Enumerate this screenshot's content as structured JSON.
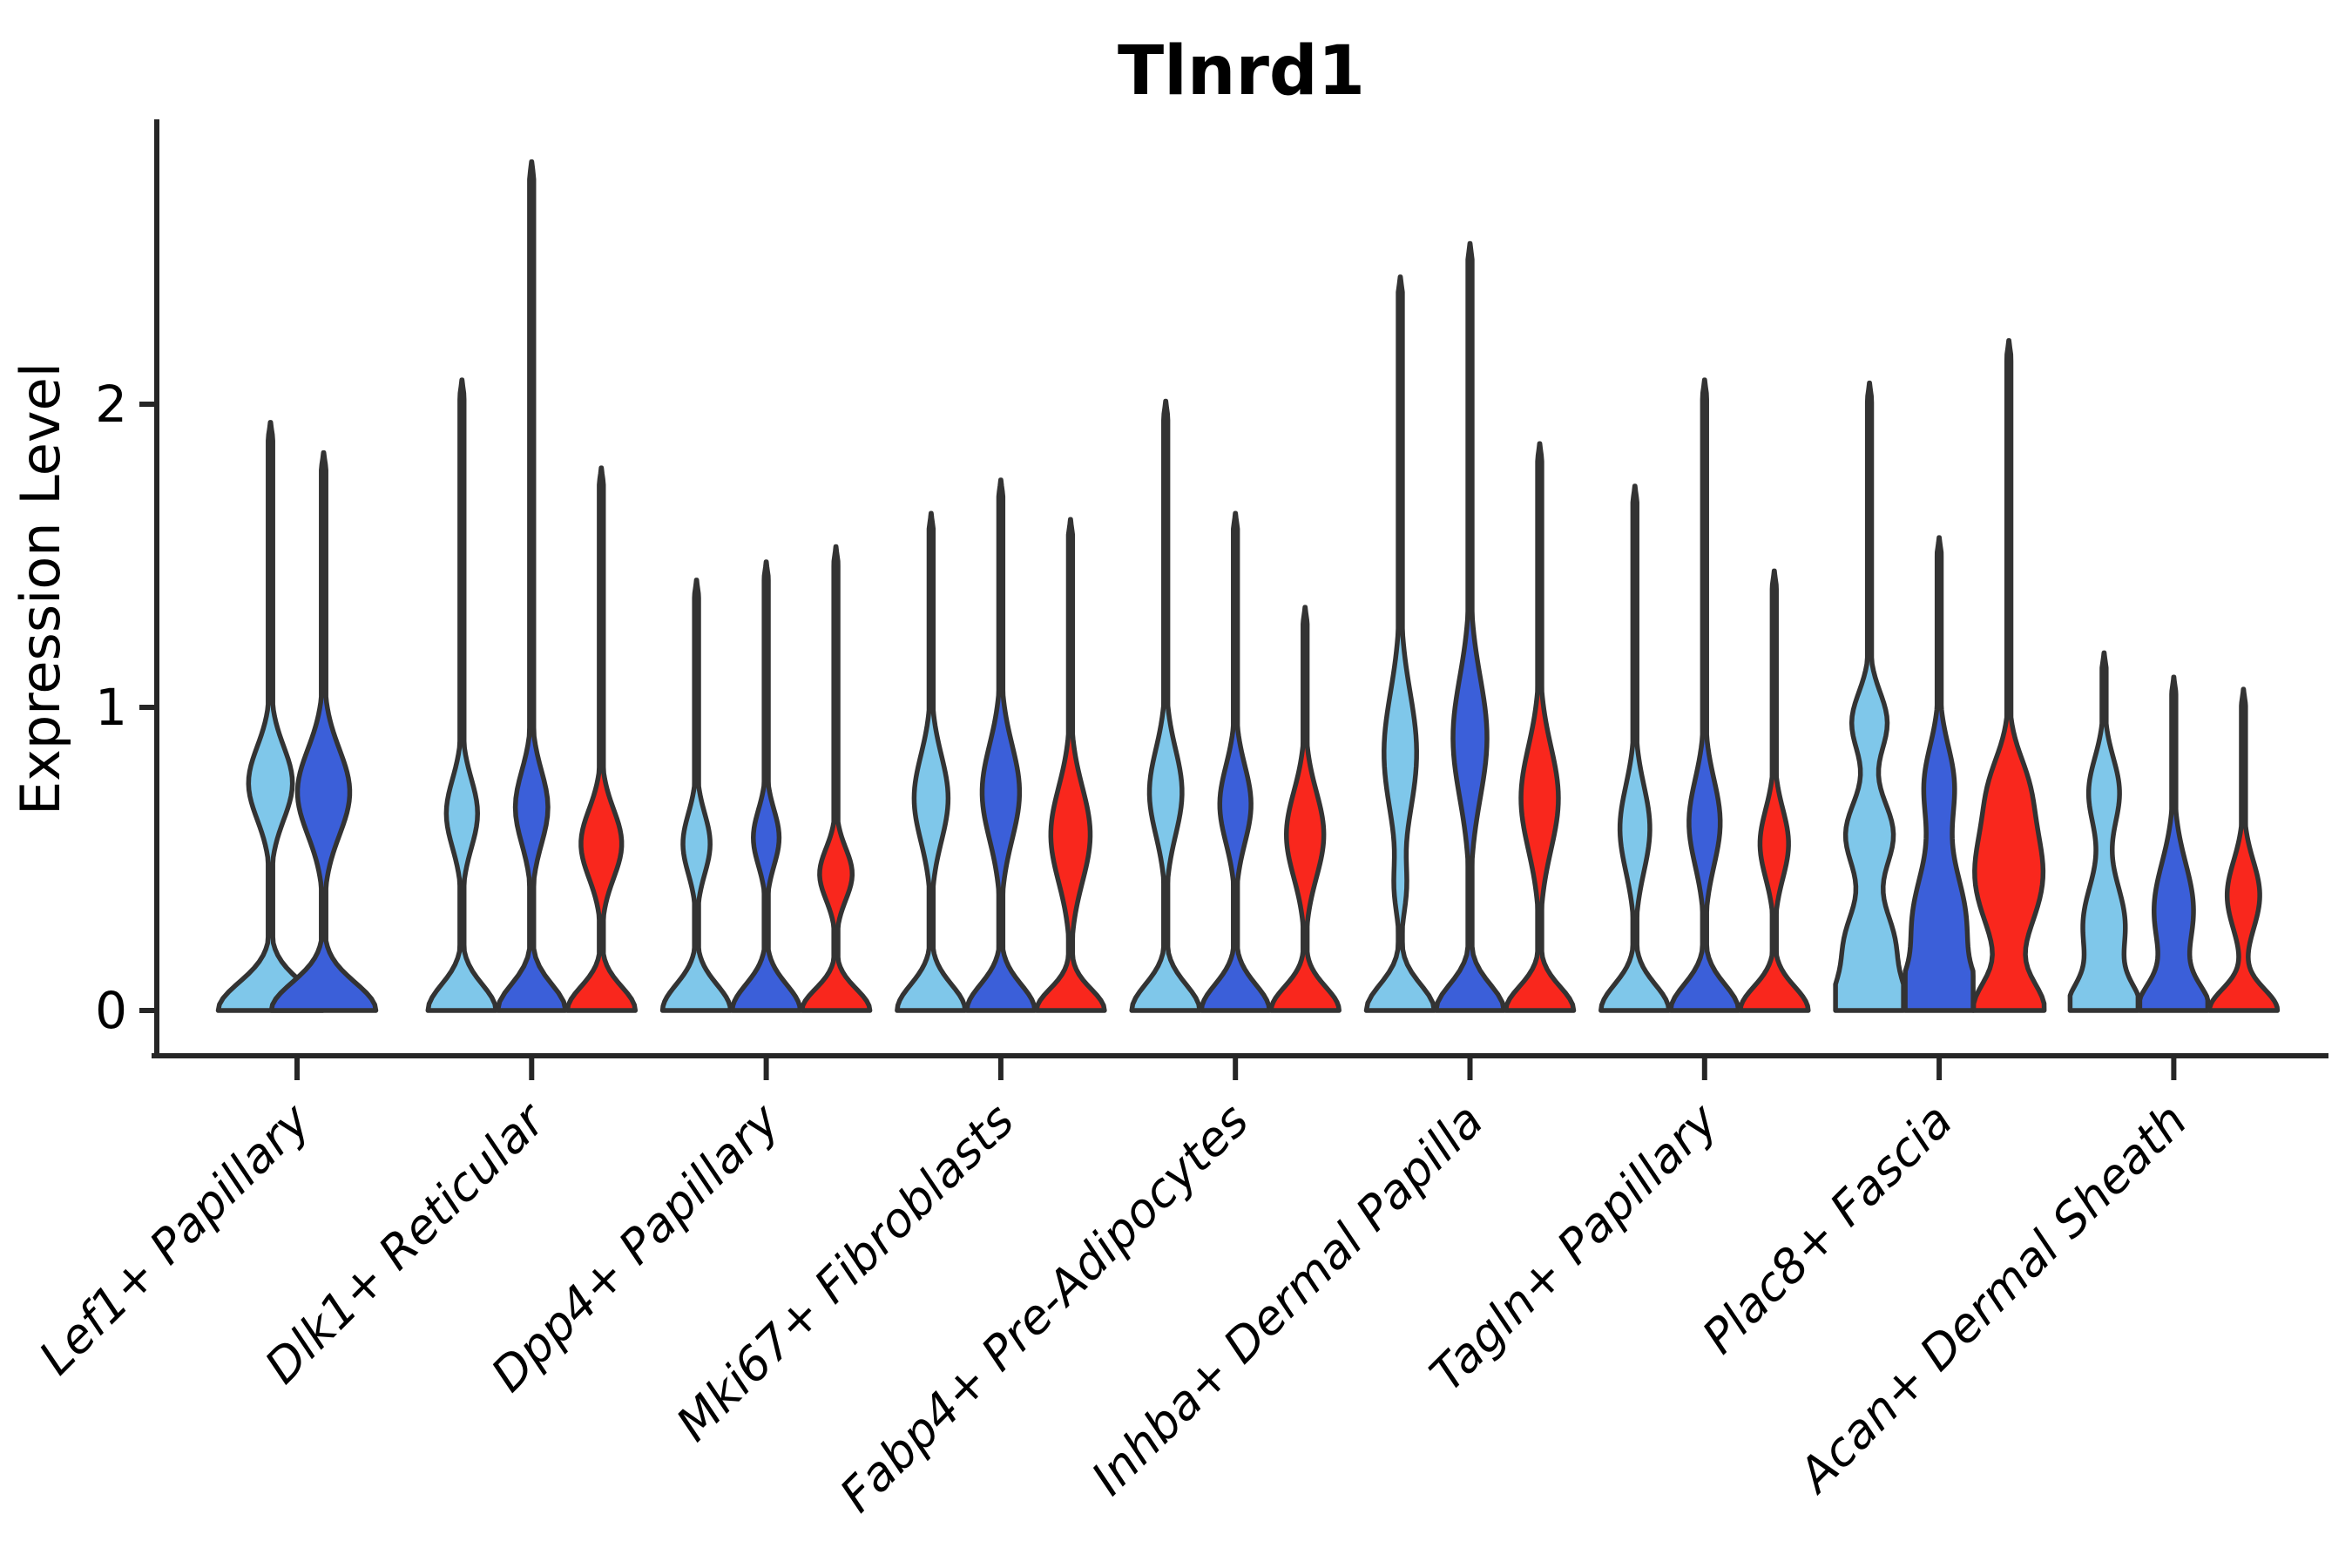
{
  "chart_data": {
    "type": "violin",
    "title": "Tlnrd1",
    "xlabel": "",
    "ylabel": "Expression Level",
    "yticks": [
      0,
      1,
      2
    ],
    "ylim": [
      0,
      2.95
    ],
    "grid": false,
    "legend": "none",
    "palette": {
      "series_1_color": "#7FC7EA",
      "series_2_color": "#3B5FD9",
      "series_3_color": "#F9271D",
      "outline_color": "#333333",
      "axis_color": "#262626",
      "background_color": "#ffffff",
      "title_color": "#000000"
    },
    "categories": [
      "Lef1+ Papillary",
      "Dlk1+ Reticular",
      "Dpp4+ Papillary",
      "Mki67+ Fibroblasts",
      "Fabp4+ Pre-Adipocytes",
      "Inhba+ Dermal Papilla",
      "Tagln+ Papillary",
      "Plac8+ Fascia",
      "Acan+ Dermal Sheath"
    ],
    "groups": [
      {
        "label": "Lef1+ Papillary",
        "violins": [
          {
            "series": 1,
            "max": 1.94,
            "base_s": 0.13,
            "bulges": [
              {
                "c": 0.75,
                "s": 0.17,
                "a": 0.42
              }
            ]
          },
          {
            "series": 2,
            "max": 1.84,
            "base_s": 0.13,
            "bulges": [
              {
                "c": 0.72,
                "s": 0.2,
                "a": 0.5
              }
            ]
          }
        ]
      },
      {
        "label": "Dlk1+ Reticular",
        "violins": [
          {
            "series": 1,
            "max": 2.08,
            "base_s": 0.12,
            "bulges": [
              {
                "c": 0.65,
                "s": 0.16,
                "a": 0.46
              }
            ]
          },
          {
            "series": 2,
            "max": 2.8,
            "base_s": 0.12,
            "bulges": [
              {
                "c": 0.67,
                "s": 0.17,
                "a": 0.48
              }
            ]
          },
          {
            "series": 3,
            "max": 1.79,
            "base_s": 0.11,
            "bulges": [
              {
                "c": 0.55,
                "s": 0.16,
                "a": 0.6
              }
            ]
          }
        ]
      },
      {
        "label": "Dpp4+ Papillary",
        "violins": [
          {
            "series": 1,
            "max": 1.42,
            "base_s": 0.12,
            "bulges": [
              {
                "c": 0.55,
                "s": 0.14,
                "a": 0.4
              }
            ]
          },
          {
            "series": 2,
            "max": 1.48,
            "base_s": 0.12,
            "bulges": [
              {
                "c": 0.57,
                "s": 0.13,
                "a": 0.38
              }
            ]
          },
          {
            "series": 3,
            "max": 1.53,
            "base_s": 0.1,
            "bulges": [
              {
                "c": 0.45,
                "s": 0.12,
                "a": 0.48
              }
            ]
          }
        ]
      },
      {
        "label": "Mki67+ Fibroblasts",
        "violins": [
          {
            "series": 1,
            "max": 1.64,
            "base_s": 0.12,
            "bulges": [
              {
                "c": 0.7,
                "s": 0.2,
                "a": 0.5
              }
            ]
          },
          {
            "series": 2,
            "max": 1.75,
            "base_s": 0.12,
            "bulges": [
              {
                "c": 0.72,
                "s": 0.22,
                "a": 0.55
              }
            ]
          },
          {
            "series": 3,
            "max": 1.62,
            "base_s": 0.1,
            "bulges": [
              {
                "c": 0.58,
                "s": 0.22,
                "a": 0.58
              }
            ]
          }
        ]
      },
      {
        "label": "Fabp4+ Pre-Adipocytes",
        "violins": [
          {
            "series": 1,
            "max": 2.01,
            "base_s": 0.12,
            "bulges": [
              {
                "c": 0.72,
                "s": 0.2,
                "a": 0.48
              }
            ]
          },
          {
            "series": 2,
            "max": 1.64,
            "base_s": 0.12,
            "bulges": [
              {
                "c": 0.68,
                "s": 0.18,
                "a": 0.46
              }
            ]
          },
          {
            "series": 3,
            "max": 1.33,
            "base_s": 0.11,
            "bulges": [
              {
                "c": 0.58,
                "s": 0.2,
                "a": 0.55
              }
            ]
          }
        ]
      },
      {
        "label": "Inhba+ Dermal Papilla",
        "violins": [
          {
            "series": 1,
            "max": 2.42,
            "base_s": 0.12,
            "bulges": [
              {
                "c": 0.85,
                "s": 0.28,
                "a": 0.48
              },
              {
                "c": 0.4,
                "s": 0.12,
                "a": 0.15
              }
            ]
          },
          {
            "series": 2,
            "max": 2.53,
            "base_s": 0.12,
            "bulges": [
              {
                "c": 0.9,
                "s": 0.28,
                "a": 0.5
              }
            ]
          },
          {
            "series": 3,
            "max": 1.87,
            "base_s": 0.11,
            "bulges": [
              {
                "c": 0.7,
                "s": 0.24,
                "a": 0.55
              }
            ]
          }
        ]
      },
      {
        "label": "Tagln+ Papillary",
        "violins": [
          {
            "series": 1,
            "max": 1.73,
            "base_s": 0.12,
            "bulges": [
              {
                "c": 0.6,
                "s": 0.2,
                "a": 0.44
              }
            ]
          },
          {
            "series": 2,
            "max": 2.08,
            "base_s": 0.12,
            "bulges": [
              {
                "c": 0.62,
                "s": 0.2,
                "a": 0.46
              }
            ]
          },
          {
            "series": 3,
            "max": 1.45,
            "base_s": 0.11,
            "bulges": [
              {
                "c": 0.55,
                "s": 0.16,
                "a": 0.42
              }
            ]
          }
        ]
      },
      {
        "label": "Plac8+ Fascia",
        "violins": [
          {
            "series": 1,
            "max": 2.07,
            "base_s": 0.13,
            "bulges": [
              {
                "c": 0.22,
                "s": 0.16,
                "a": 0.72
              },
              {
                "c": 0.58,
                "s": 0.16,
                "a": 0.7
              },
              {
                "c": 0.95,
                "s": 0.14,
                "a": 0.52
              }
            ]
          },
          {
            "series": 2,
            "max": 1.56,
            "base_s": 0.14,
            "bulges": [
              {
                "c": 0.28,
                "s": 0.26,
                "a": 0.8
              },
              {
                "c": 0.75,
                "s": 0.18,
                "a": 0.42
              }
            ]
          },
          {
            "series": 3,
            "max": 2.21,
            "base_s": 0.13,
            "clamp": 1.04,
            "bulges": [
              {
                "c": 0.45,
                "s": 0.26,
                "a": 1.0
              },
              {
                "c": 0.75,
                "s": 0.15,
                "a": 0.35
              }
            ]
          }
        ]
      },
      {
        "label": "Acan+ Dermal Sheath",
        "violins": [
          {
            "series": 1,
            "max": 1.18,
            "base_s": 0.12,
            "bulges": [
              {
                "c": 0.28,
                "s": 0.2,
                "a": 0.62
              },
              {
                "c": 0.72,
                "s": 0.16,
                "a": 0.45
              }
            ]
          },
          {
            "series": 2,
            "max": 1.1,
            "base_s": 0.12,
            "bulges": [
              {
                "c": 0.33,
                "s": 0.22,
                "a": 0.58
              }
            ]
          },
          {
            "series": 3,
            "max": 1.06,
            "base_s": 0.1,
            "bulges": [
              {
                "c": 0.38,
                "s": 0.16,
                "a": 0.48
              }
            ]
          }
        ]
      }
    ]
  }
}
